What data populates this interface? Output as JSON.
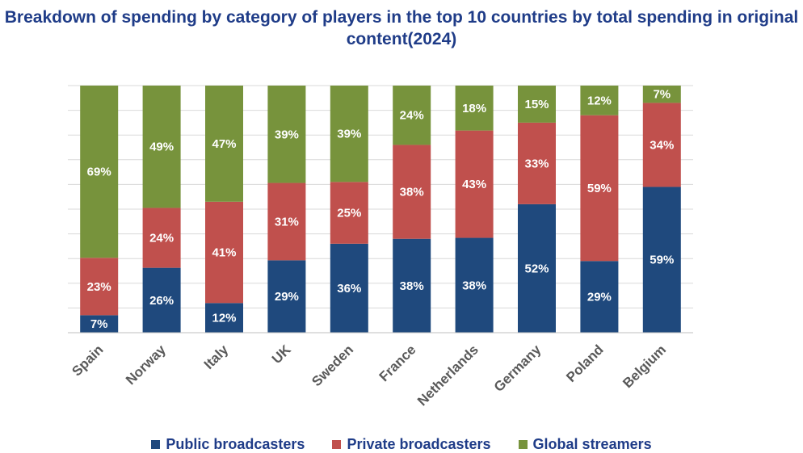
{
  "chart_data": {
    "type": "bar",
    "stacked": true,
    "percent_stacked": true,
    "title": "Breakdown of spending by category of players in the top 10 countries by total spending in original content(2024)",
    "xlabel": "",
    "ylabel": "",
    "ylim": [
      0,
      100
    ],
    "grid": true,
    "legend_position": "bottom",
    "categories": [
      "Spain",
      "Norway",
      "Italy",
      "UK",
      "Sweden",
      "France",
      "Netherlands",
      "Germany",
      "Poland",
      "Belgium"
    ],
    "series": [
      {
        "name": "Public broadcasters",
        "color": "#1f497d",
        "values": [
          7,
          26,
          12,
          29,
          36,
          38,
          38,
          52,
          29,
          59
        ],
        "labels": [
          "7%",
          "26%",
          "12%",
          "29%",
          "36%",
          "38%",
          "38%",
          "52%",
          "29%",
          "59%"
        ]
      },
      {
        "name": "Private broadcasters",
        "color": "#c0504d",
        "values": [
          23,
          24,
          41,
          31,
          25,
          38,
          43,
          33,
          59,
          34
        ],
        "labels": [
          "23%",
          "24%",
          "41%",
          "31%",
          "25%",
          "38%",
          "43%",
          "33%",
          "59%",
          "34%"
        ]
      },
      {
        "name": "Global streamers",
        "color": "#77933c",
        "values": [
          69,
          49,
          47,
          39,
          39,
          24,
          18,
          15,
          12,
          7
        ],
        "labels": [
          "69%",
          "49%",
          "47%",
          "39%",
          "39%",
          "24%",
          "18%",
          "15%",
          "12%",
          "7%"
        ]
      }
    ]
  }
}
